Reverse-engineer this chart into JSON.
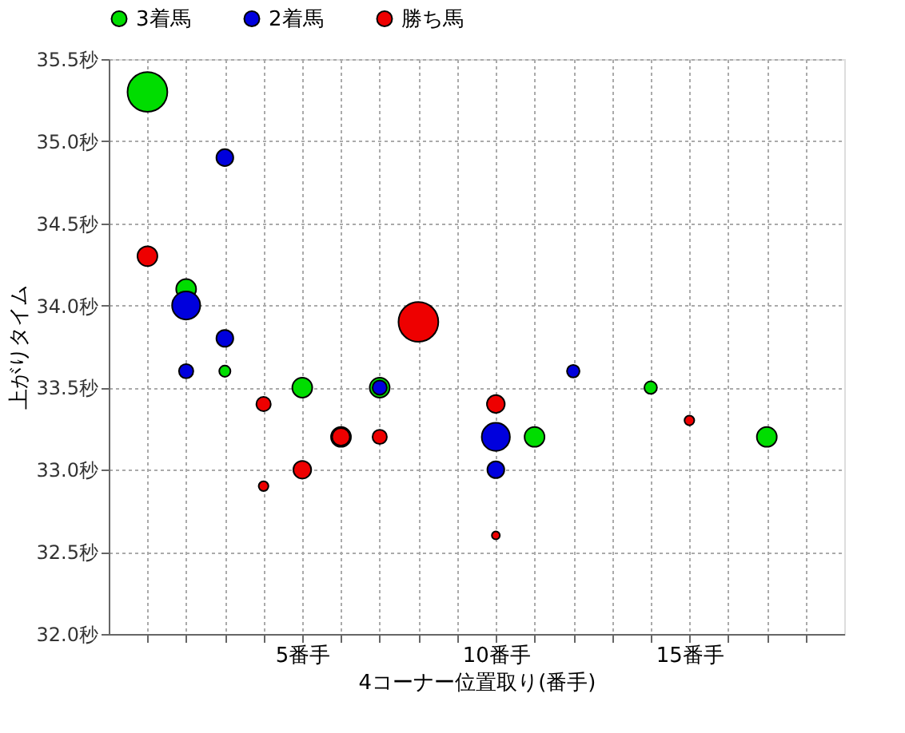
{
  "chart_data": {
    "type": "bubble",
    "xlabel": "4コーナー位置取り(番手)",
    "ylabel": "上がりタイム",
    "legend": "top",
    "grid": true,
    "xlim": [
      0,
      19
    ],
    "ylim": [
      32.0,
      35.5
    ],
    "xticks": [
      {
        "value": 1,
        "label": null
      },
      {
        "value": 2,
        "label": null
      },
      {
        "value": 3,
        "label": null
      },
      {
        "value": 4,
        "label": null
      },
      {
        "value": 5,
        "label": "5番手"
      },
      {
        "value": 6,
        "label": null
      },
      {
        "value": 7,
        "label": null
      },
      {
        "value": 8,
        "label": null
      },
      {
        "value": 9,
        "label": null
      },
      {
        "value": 10,
        "label": "10番手"
      },
      {
        "value": 11,
        "label": null
      },
      {
        "value": 12,
        "label": null
      },
      {
        "value": 13,
        "label": null
      },
      {
        "value": 14,
        "label": null
      },
      {
        "value": 15,
        "label": "15番手"
      },
      {
        "value": 16,
        "label": null
      },
      {
        "value": 17,
        "label": null
      },
      {
        "value": 18,
        "label": null
      }
    ],
    "yticks": [
      {
        "value": 32.0,
        "label": "32.0秒"
      },
      {
        "value": 32.5,
        "label": "32.5秒"
      },
      {
        "value": 33.0,
        "label": "33.0秒"
      },
      {
        "value": 33.5,
        "label": "33.5秒"
      },
      {
        "value": 34.0,
        "label": "34.0秒"
      },
      {
        "value": 34.5,
        "label": "34.5秒"
      },
      {
        "value": 35.0,
        "label": "35.0秒"
      },
      {
        "value": 35.5,
        "label": "35.5秒"
      }
    ],
    "series": [
      {
        "name": "3着馬",
        "color": "#00dd00",
        "x": [
          1,
          2,
          3,
          5,
          6,
          7,
          11,
          14,
          17
        ],
        "values": [
          35.3,
          34.1,
          33.6,
          33.5,
          33.2,
          33.5,
          33.2,
          33.5,
          33.2
        ],
        "sizes": [
          1,
          0.25,
          0.08,
          0.25,
          0.25,
          0.25,
          0.25,
          0.1,
          0.25
        ]
      },
      {
        "name": "2着馬",
        "color": "#0000dd",
        "x": [
          3,
          2,
          3,
          2,
          7,
          10,
          10,
          12
        ],
        "values": [
          34.9,
          34.0,
          33.8,
          33.6,
          33.5,
          33.2,
          33.0,
          33.6
        ],
        "sizes": [
          0.18,
          0.5,
          0.18,
          0.13,
          0.13,
          0.5,
          0.18,
          0.1
        ]
      },
      {
        "name": "勝ち馬",
        "color": "#ee0000",
        "x": [
          1,
          4,
          8,
          6,
          7,
          5,
          4,
          10,
          10,
          15
        ],
        "values": [
          34.3,
          33.4,
          33.9,
          33.2,
          33.2,
          33.0,
          32.9,
          33.4,
          32.6,
          33.3
        ],
        "sizes": [
          0.25,
          0.13,
          1,
          0.2,
          0.13,
          0.2,
          0.06,
          0.2,
          0.04,
          0.06
        ]
      }
    ]
  }
}
